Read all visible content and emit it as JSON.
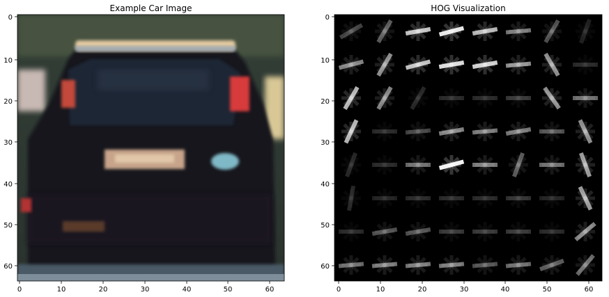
{
  "panels": [
    {
      "title": "Example Car Image",
      "kind": "rgb-image",
      "x_ticks": [
        "0",
        "10",
        "20",
        "30",
        "40",
        "50",
        "60"
      ],
      "y_ticks": [
        "0",
        "10",
        "20",
        "30",
        "40",
        "50",
        "60"
      ]
    },
    {
      "title": "HOG Visualization",
      "kind": "hog-grayscale",
      "x_ticks": [
        "0",
        "10",
        "20",
        "30",
        "40",
        "50",
        "60"
      ],
      "y_ticks": [
        "0",
        "10",
        "20",
        "30",
        "40",
        "50",
        "60"
      ]
    }
  ],
  "image_size": 64,
  "colors": {
    "hog_background": "#000000",
    "hog_stroke": "#ffffff",
    "axes_frame": "#000000"
  }
}
